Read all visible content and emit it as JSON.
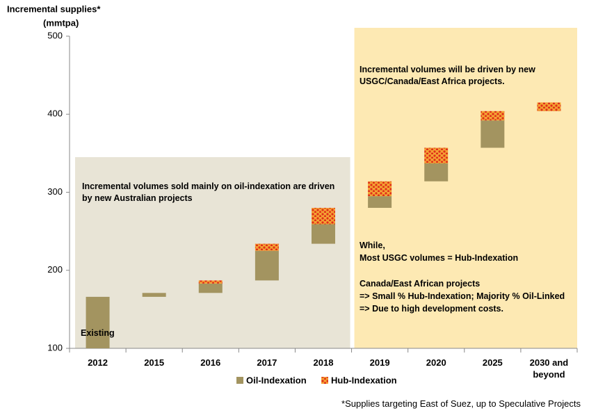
{
  "chart_data": {
    "type": "waterfall",
    "ylabel": [
      "Incremental supplies*",
      "(mmtpa)"
    ],
    "categories": [
      "2012",
      "2015",
      "2016",
      "2017",
      "2018",
      "2019",
      "2020",
      "2025",
      "2030 and beyond"
    ],
    "series": [
      {
        "name": "Oil-Indexation",
        "color": "#a39460",
        "values": [
          166,
          5,
          12,
          38,
          25,
          15,
          23,
          35,
          0
        ]
      },
      {
        "name": "Hub-Indexation",
        "color": "#f4a233",
        "values": [
          0,
          0,
          4,
          9,
          21,
          19,
          20,
          12,
          11
        ]
      }
    ],
    "ylim": [
      100,
      500
    ],
    "yticks": [
      100,
      200,
      300,
      400,
      500
    ],
    "annotations": {
      "existing": "Existing",
      "left_box": "Incremental volumes  sold mainly on oil-indexation are driven by new Australian projects",
      "right_box_top": "Incremental volumes  will be driven by new USGC/Canada/East Africa projects.",
      "right_box_lines": [
        "While,",
        "Most USGC volumes = Hub-Indexation",
        "Canada/East African projects",
        "=> Small % Hub-Indexation; Majority % Oil-Linked",
        "=> Due to high development costs."
      ]
    },
    "footnote": "*Supplies targeting East of Suez, up to Speculative Projects"
  }
}
